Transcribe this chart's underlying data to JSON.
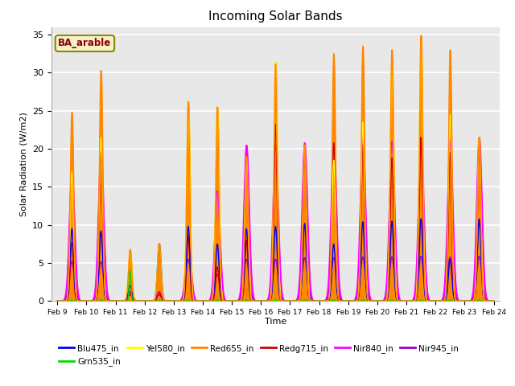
{
  "title": "Incoming Solar Bands",
  "xlabel": "Time",
  "ylabel": "Solar Radiation (W/m2)",
  "ylim": [
    0,
    36
  ],
  "annotation": "BA_arable",
  "legend_entries": [
    {
      "label": "Blu475_in",
      "color": "#0000ee"
    },
    {
      "label": "Grn535_in",
      "color": "#00dd00"
    },
    {
      "label": "Yel580_in",
      "color": "#ffff00"
    },
    {
      "label": "Red655_in",
      "color": "#ff8800"
    },
    {
      "label": "Redg715_in",
      "color": "#cc0000"
    },
    {
      "label": "Nir840_in",
      "color": "#ff00ff"
    },
    {
      "label": "Nir945_in",
      "color": "#9900cc"
    }
  ],
  "tick_labels": [
    "Feb 9",
    "Feb 10",
    "Feb 11",
    "Feb 12",
    "Feb 13",
    "Feb 14",
    "Feb 15",
    "Feb 16",
    "Feb 17",
    "Feb 18",
    "Feb 19",
    "Feb 20",
    "Feb 21",
    "Feb 22",
    "Feb 23",
    "Feb 24"
  ],
  "day_peaks": {
    "blu": [
      9.5,
      9.2,
      2.0,
      7.5,
      9.8,
      7.5,
      9.5,
      9.8,
      10.2,
      7.5,
      10.4,
      10.5,
      10.8,
      5.5,
      10.8
    ],
    "grn": [
      0.2,
      0.2,
      4.0,
      0.2,
      0.2,
      0.2,
      0.2,
      0.2,
      0.2,
      0.2,
      0.2,
      0.2,
      0.2,
      0.2,
      0.2
    ],
    "yel": [
      17.0,
      21.5,
      6.5,
      7.5,
      26.0,
      25.5,
      19.0,
      31.5,
      20.5,
      18.5,
      23.5,
      31.5,
      34.5,
      24.5,
      21.5
    ],
    "red": [
      24.8,
      30.3,
      6.8,
      7.6,
      26.2,
      25.5,
      19.0,
      31.2,
      20.5,
      32.5,
      33.5,
      33.0,
      34.9,
      33.0,
      21.5
    ],
    "redg": [
      7.7,
      19.5,
      1.2,
      1.2,
      8.5,
      4.5,
      8.0,
      23.2,
      20.5,
      20.8,
      20.5,
      18.8,
      21.5,
      19.5,
      21.5
    ],
    "nir840": [
      16.8,
      19.5,
      1.2,
      1.2,
      8.5,
      14.5,
      20.5,
      20.5,
      20.8,
      20.8,
      21.0,
      21.0,
      21.5,
      21.0,
      21.5
    ],
    "nir945": [
      5.2,
      5.2,
      0.8,
      0.8,
      5.5,
      3.5,
      5.5,
      5.5,
      5.7,
      5.7,
      5.8,
      5.8,
      5.9,
      5.8,
      5.9
    ]
  },
  "peak_widths": {
    "blu": 0.06,
    "grn": 0.03,
    "yel": 0.06,
    "red": 0.055,
    "redg": 0.055,
    "nir840": 0.09,
    "nir945": 0.085
  },
  "background_color": "#ffffff",
  "plot_bg_color": "#e8e8e8",
  "grid_color": "#ffffff"
}
